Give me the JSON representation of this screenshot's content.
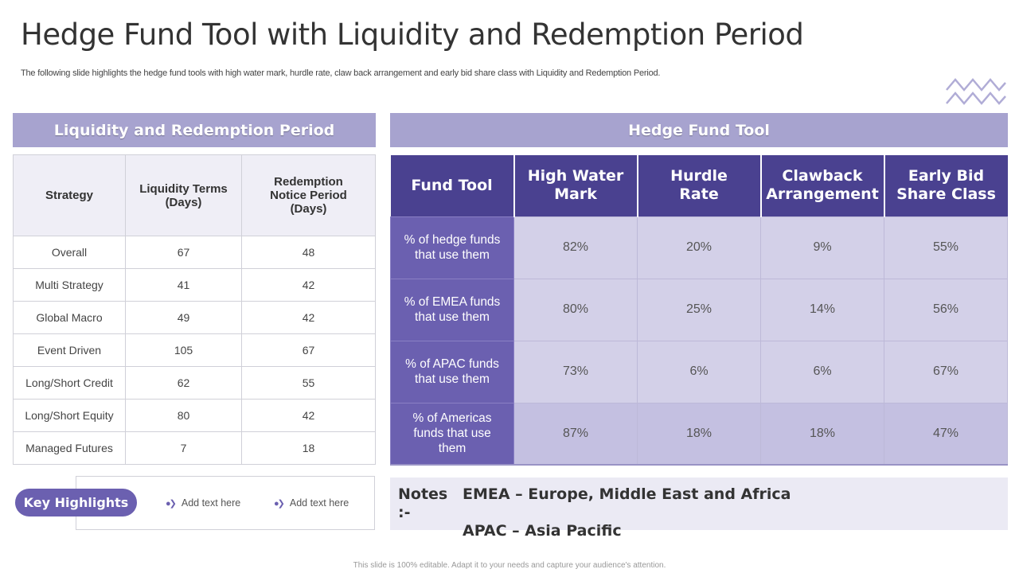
{
  "title": "Hedge Fund Tool with Liquidity and Redemption Period",
  "subtitle": "The following slide highlights the hedge fund tools with high water mark, hurdle rate, claw back arrangement and early bid share class with Liquidity and Redemption Period.",
  "colors": {
    "accent": "#6b60b0",
    "header_dark": "#4a4190",
    "bar": "#a7a3cf",
    "cell": "#d3d0e8"
  },
  "left": {
    "heading": "Liquidity and Redemption Period",
    "columns": [
      "Strategy",
      "Liquidity Terms (Days)",
      "Redemption Notice Period (Days)"
    ],
    "rows": [
      [
        "Overall",
        "67",
        "48"
      ],
      [
        "Multi Strategy",
        "41",
        "42"
      ],
      [
        "Global Macro",
        "49",
        "42"
      ],
      [
        "Event Driven",
        "105",
        "67"
      ],
      [
        "Long/Short Credit",
        "62",
        "55"
      ],
      [
        "Long/Short Equity",
        "80",
        "42"
      ],
      [
        "Managed Futures",
        "7",
        "18"
      ]
    ]
  },
  "right": {
    "heading": "Hedge Fund Tool",
    "columns": [
      "Fund Tool",
      "High Water Mark",
      "Hurdle Rate",
      "Clawback Arrangement",
      "Early Bid Share Class"
    ],
    "rows": [
      [
        "% of hedge funds that use them",
        "82%",
        "20%",
        "9%",
        "55%"
      ],
      [
        "% of EMEA funds that use them",
        "80%",
        "25%",
        "14%",
        "56%"
      ],
      [
        "% of APAC funds that use them",
        "73%",
        "6%",
        "6%",
        "67%"
      ],
      [
        "% of Americas funds that use them",
        "87%",
        "18%",
        "18%",
        "47%"
      ]
    ]
  },
  "highlights": {
    "label": "Key Highlights",
    "items": [
      "Add text here",
      "Add text here"
    ]
  },
  "notes": {
    "label": "Notes :-",
    "lines": [
      "EMEA – Europe, Middle East and Africa",
      "APAC – Asia Pacific"
    ]
  },
  "footer": "This slide is 100% editable. Adapt it to your needs and capture your audience's attention.",
  "decor_icon": "zigzag-lines-icon"
}
